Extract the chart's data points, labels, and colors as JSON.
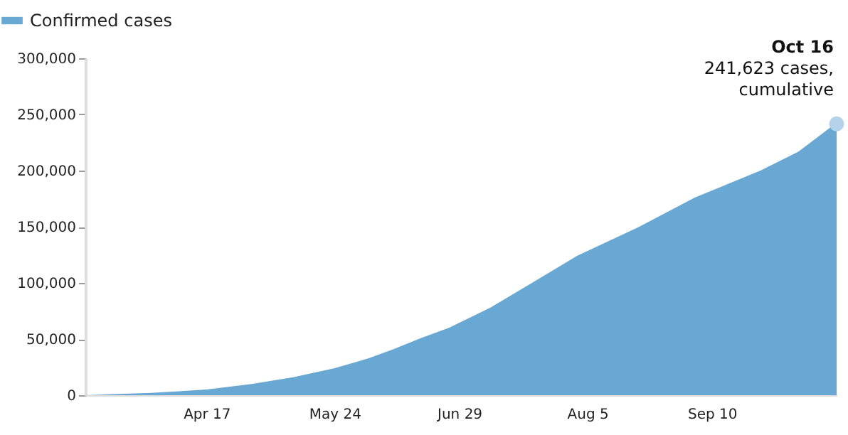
{
  "chart_data": {
    "type": "area",
    "x": [
      "--03-13",
      "--03-21",
      "--04-01",
      "--04-17",
      "--04-30",
      "--05-12",
      "--05-24",
      "--06-03",
      "--06-10",
      "--06-18",
      "--06-26",
      "--07-08",
      "--07-20",
      "--08-02",
      "--08-20",
      "--09-05",
      "--09-24",
      "--10-05",
      "--10-14",
      "--10-16"
    ],
    "series": [
      {
        "name": "Confirmed cases",
        "color": "#6aa8d4",
        "values": [
          0,
          1000,
          2000,
          5000,
          10000,
          16000,
          24000,
          33000,
          41000,
          51000,
          60000,
          78000,
          100000,
          124000,
          150000,
          176000,
          200000,
          217000,
          238000,
          241623
        ]
      },
      {
        "type": "scatter",
        "color": "#b4d3ea",
        "x": [
          "--10-16"
        ],
        "values": [
          241623
        ]
      }
    ],
    "xlim": [
      "--03-13",
      "--10-16"
    ],
    "xticks": [
      {
        "value": "--04-17",
        "label": "Apr 17"
      },
      {
        "value": "--05-24",
        "label": "May 24"
      },
      {
        "value": "--06-29",
        "label": "Jun 29"
      },
      {
        "value": "--08-05",
        "label": "Aug 5"
      },
      {
        "value": "--09-10",
        "label": "Sep 10"
      }
    ],
    "ylim": [
      0,
      300000
    ],
    "yticks": [
      0,
      {
        "value": 50000,
        "label": "50,000"
      },
      {
        "value": 100000,
        "label": "100,000"
      },
      {
        "value": 150000,
        "label": "150,000"
      },
      {
        "value": 200000,
        "label": "200,000"
      },
      {
        "value": 250000,
        "label": "250,000"
      },
      {
        "value": 300000,
        "label": "300,000"
      }
    ],
    "annotations": [
      "Oct 16",
      "241,623 cases, cumulative"
    ],
    "legend": "top left",
    "grid": false
  }
}
